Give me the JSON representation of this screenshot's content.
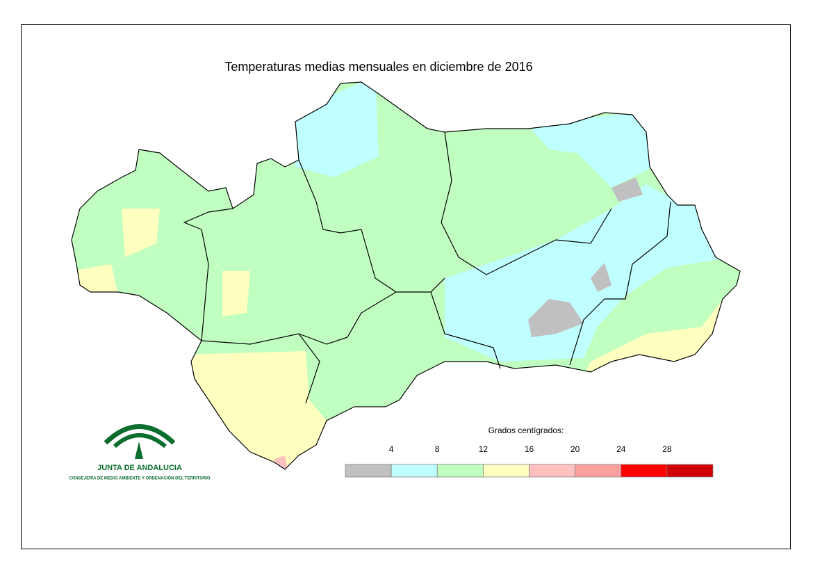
{
  "title": "Temperaturas medias mensuales en diciembre de 2016",
  "legend": {
    "title": "Grados centígrados:",
    "ticks": [
      4,
      8,
      12,
      16,
      20,
      24,
      28
    ],
    "colors": [
      "#c0c0c0",
      "#c0ffff",
      "#c0ffc0",
      "#ffffc0",
      "#ffc0c0",
      "#ffa0a0",
      "#ff0000",
      "#d00000"
    ]
  },
  "logo": {
    "name": "JUNTA DE ANDALUCIA",
    "subtitle": "CONSEJERÍA DE MEDIO AMBIENTE Y ORDENACIÓN DEL TERRITORIO"
  }
}
